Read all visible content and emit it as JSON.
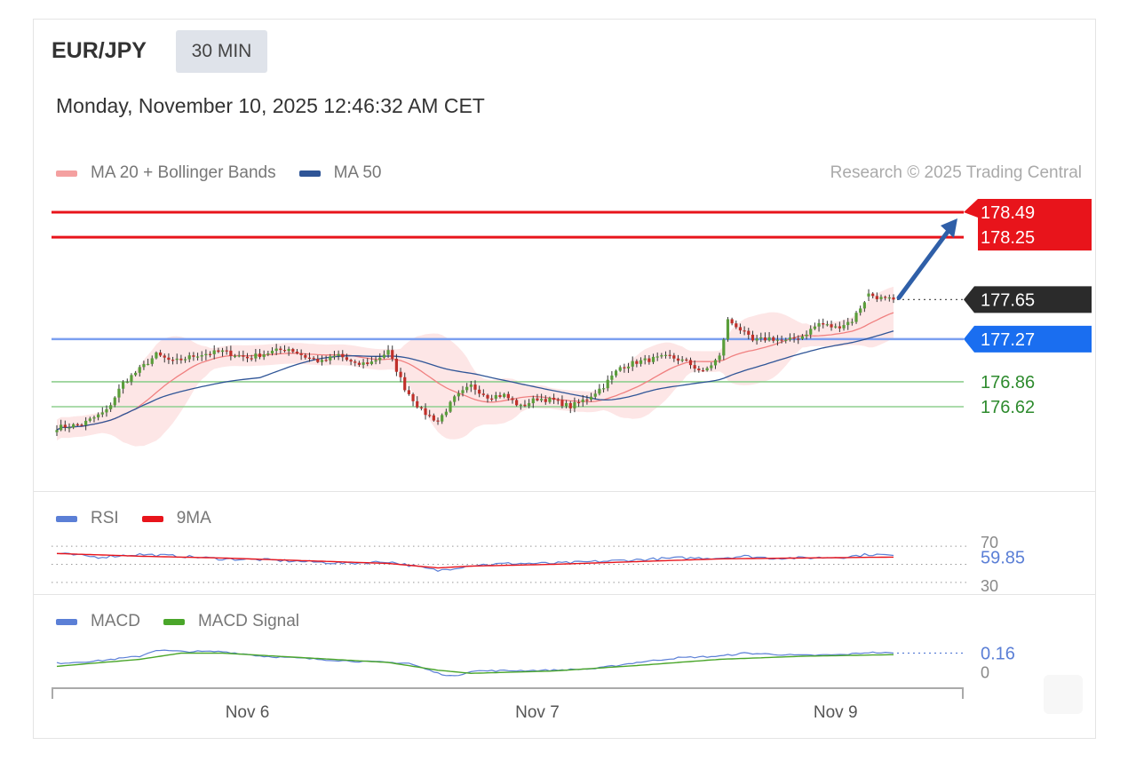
{
  "header": {
    "pair": "EUR/JPY",
    "timeframe": "30 MIN",
    "datetime": "Monday, November 10, 2025 12:46:32 AM CET"
  },
  "legend": {
    "ma20": "MA 20 + Bollinger Bands",
    "ma50": "MA 50",
    "credit": "Research © 2025 Trading Central"
  },
  "rsi_legend": {
    "rsi": "RSI",
    "ma9": "9MA"
  },
  "macd_legend": {
    "macd": "MACD",
    "signal": "MACD Signal"
  },
  "colors": {
    "resistance": "#e8141b",
    "support_blue": "#1a6ef0",
    "support_green": "#8fcf8f",
    "ma20": "#f08080",
    "ma50": "#2f5597",
    "candle_up": "#5a9e3a",
    "candle_down": "#c0302a",
    "band_fill": "#fde2e2",
    "rsi": "#5b7fd6",
    "macd_signal": "#4aa62a",
    "arrow": "#2f5fa8",
    "current_tag": "#2b2b2b"
  },
  "price_tags": [
    {
      "value": "178.49",
      "kind": "resistance"
    },
    {
      "value": "178.25",
      "kind": "resistance"
    },
    {
      "value": "177.65",
      "kind": "current"
    },
    {
      "value": "177.27",
      "kind": "support_blue"
    },
    {
      "value": "176.86",
      "kind": "support_green"
    },
    {
      "value": "176.62",
      "kind": "support_green"
    }
  ],
  "rsi_labels": {
    "level_high": "70",
    "value": "59.85",
    "level_low": "30"
  },
  "macd_labels": {
    "value": "0.16",
    "zero": "0"
  },
  "chart_data": {
    "type": "candlestick",
    "main": {
      "ylim": [
        176.05,
        178.75
      ],
      "levels": [
        {
          "value": 178.49,
          "kind": "resistance"
        },
        {
          "value": 178.25,
          "kind": "resistance"
        },
        {
          "value": 177.27,
          "kind": "support"
        },
        {
          "value": 176.86,
          "kind": "support"
        },
        {
          "value": 176.62,
          "kind": "support"
        }
      ],
      "current_price": 177.65,
      "close_anchors": [
        [
          0,
          176.42
        ],
        [
          6,
          176.45
        ],
        [
          12,
          176.58
        ],
        [
          16,
          176.85
        ],
        [
          20,
          176.98
        ],
        [
          24,
          177.12
        ],
        [
          28,
          177.05
        ],
        [
          34,
          177.12
        ],
        [
          40,
          177.15
        ],
        [
          46,
          177.09
        ],
        [
          52,
          177.15
        ],
        [
          56,
          177.18
        ],
        [
          60,
          177.1
        ],
        [
          64,
          177.05
        ],
        [
          68,
          177.12
        ],
        [
          72,
          177.02
        ],
        [
          76,
          177.05
        ],
        [
          80,
          177.15
        ],
        [
          84,
          176.8
        ],
        [
          88,
          176.58
        ],
        [
          92,
          176.48
        ],
        [
          96,
          176.7
        ],
        [
          100,
          176.82
        ],
        [
          104,
          176.72
        ],
        [
          108,
          176.73
        ],
        [
          112,
          176.62
        ],
        [
          116,
          176.7
        ],
        [
          120,
          176.68
        ],
        [
          124,
          176.62
        ],
        [
          128,
          176.7
        ],
        [
          132,
          176.82
        ],
        [
          136,
          177.0
        ],
        [
          140,
          177.05
        ],
        [
          144,
          177.08
        ],
        [
          148,
          177.1
        ],
        [
          152,
          177.05
        ],
        [
          156,
          176.95
        ],
        [
          160,
          177.1
        ],
        [
          162,
          177.45
        ],
        [
          164,
          177.4
        ],
        [
          168,
          177.25
        ],
        [
          172,
          177.28
        ],
        [
          176,
          177.25
        ],
        [
          180,
          177.3
        ],
        [
          184,
          177.42
        ],
        [
          188,
          177.38
        ],
        [
          192,
          177.45
        ],
        [
          196,
          177.7
        ],
        [
          200,
          177.65
        ],
        [
          202,
          177.65
        ]
      ],
      "candle_count": 203
    },
    "rsi": {
      "ylim": [
        20,
        80
      ],
      "levels": [
        70,
        50,
        30
      ],
      "rsi_anchors": [
        [
          0,
          62
        ],
        [
          10,
          58
        ],
        [
          20,
          61
        ],
        [
          30,
          59
        ],
        [
          40,
          56
        ],
        [
          50,
          55
        ],
        [
          60,
          53
        ],
        [
          70,
          51
        ],
        [
          80,
          53
        ],
        [
          85,
          49
        ],
        [
          92,
          43
        ],
        [
          96,
          46
        ],
        [
          100,
          49
        ],
        [
          110,
          51
        ],
        [
          120,
          51
        ],
        [
          130,
          53
        ],
        [
          140,
          55
        ],
        [
          150,
          57
        ],
        [
          160,
          57
        ],
        [
          166,
          59
        ],
        [
          172,
          57
        ],
        [
          180,
          57
        ],
        [
          190,
          58
        ],
        [
          196,
          61
        ],
        [
          202,
          59.85
        ]
      ],
      "ma9_anchors": [
        [
          0,
          62
        ],
        [
          20,
          59
        ],
        [
          40,
          57
        ],
        [
          60,
          54
        ],
        [
          80,
          51
        ],
        [
          92,
          46
        ],
        [
          100,
          48
        ],
        [
          120,
          50
        ],
        [
          140,
          53
        ],
        [
          160,
          56
        ],
        [
          180,
          57
        ],
        [
          202,
          58
        ]
      ]
    },
    "macd": {
      "ylim": [
        -0.28,
        0.36
      ],
      "macd_anchors": [
        [
          0,
          0.03
        ],
        [
          10,
          0.06
        ],
        [
          20,
          0.12
        ],
        [
          24,
          0.2
        ],
        [
          30,
          0.18
        ],
        [
          40,
          0.18
        ],
        [
          50,
          0.12
        ],
        [
          60,
          0.09
        ],
        [
          70,
          0.06
        ],
        [
          80,
          0.04
        ],
        [
          85,
          0.03
        ],
        [
          92,
          -0.1
        ],
        [
          96,
          -0.14
        ],
        [
          100,
          -0.07
        ],
        [
          120,
          -0.06
        ],
        [
          130,
          -0.04
        ],
        [
          140,
          0.04
        ],
        [
          150,
          0.1
        ],
        [
          160,
          0.12
        ],
        [
          166,
          0.16
        ],
        [
          180,
          0.13
        ],
        [
          190,
          0.14
        ],
        [
          196,
          0.17
        ],
        [
          202,
          0.16
        ]
      ],
      "signal_anchors": [
        [
          0,
          -0.01
        ],
        [
          20,
          0.08
        ],
        [
          30,
          0.16
        ],
        [
          40,
          0.16
        ],
        [
          60,
          0.1
        ],
        [
          80,
          0.04
        ],
        [
          92,
          -0.06
        ],
        [
          100,
          -0.1
        ],
        [
          120,
          -0.07
        ],
        [
          140,
          0.0
        ],
        [
          160,
          0.08
        ],
        [
          180,
          0.12
        ],
        [
          202,
          0.14
        ]
      ]
    },
    "x_tick_labels": [
      {
        "label": "Nov 6",
        "index": 46
      },
      {
        "label": "Nov 7",
        "index": 116
      },
      {
        "label": "Nov 9",
        "index": 188
      }
    ]
  }
}
